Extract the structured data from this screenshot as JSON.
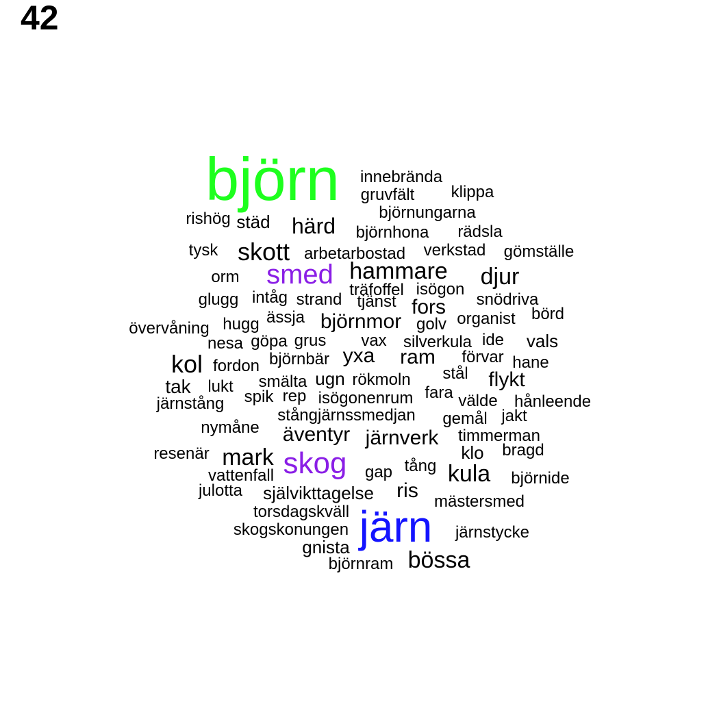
{
  "page_number": "42",
  "colors": {
    "green": "#1eff1e",
    "purple": "#8a1ee6",
    "blue": "#1414ff",
    "black": "#000000"
  },
  "words": [
    {
      "text": "björn",
      "color": "#1eff1e"
    },
    {
      "text": "innebrända",
      "color": "#000000"
    },
    {
      "text": "gruvfält",
      "color": "#000000"
    },
    {
      "text": "klippa",
      "color": "#000000"
    },
    {
      "text": "björnungarna",
      "color": "#000000"
    },
    {
      "text": "rishög",
      "color": "#000000"
    },
    {
      "text": "städ",
      "color": "#000000"
    },
    {
      "text": "härd",
      "color": "#000000"
    },
    {
      "text": "björnhona",
      "color": "#000000"
    },
    {
      "text": "rädsla",
      "color": "#000000"
    },
    {
      "text": "tysk",
      "color": "#000000"
    },
    {
      "text": "skott",
      "color": "#000000"
    },
    {
      "text": "arbetarbostad",
      "color": "#000000"
    },
    {
      "text": "verkstad",
      "color": "#000000"
    },
    {
      "text": "gömställe",
      "color": "#000000"
    },
    {
      "text": "smed",
      "color": "#8a1ee6"
    },
    {
      "text": "hammare",
      "color": "#000000"
    },
    {
      "text": "orm",
      "color": "#000000"
    },
    {
      "text": "djur",
      "color": "#000000"
    },
    {
      "text": "träfoffel",
      "color": "#000000"
    },
    {
      "text": "isögon",
      "color": "#000000"
    },
    {
      "text": "glugg",
      "color": "#000000"
    },
    {
      "text": "intåg",
      "color": "#000000"
    },
    {
      "text": "strand",
      "color": "#000000"
    },
    {
      "text": "tjänst",
      "color": "#000000"
    },
    {
      "text": "fors",
      "color": "#000000"
    },
    {
      "text": "snödriva",
      "color": "#000000"
    },
    {
      "text": "ässja",
      "color": "#000000"
    },
    {
      "text": "björnmor",
      "color": "#000000"
    },
    {
      "text": "golv",
      "color": "#000000"
    },
    {
      "text": "organist",
      "color": "#000000"
    },
    {
      "text": "börd",
      "color": "#000000"
    },
    {
      "text": "övervåning",
      "color": "#000000"
    },
    {
      "text": "hugg",
      "color": "#000000"
    },
    {
      "text": "nesa",
      "color": "#000000"
    },
    {
      "text": "göpa",
      "color": "#000000"
    },
    {
      "text": "grus",
      "color": "#000000"
    },
    {
      "text": "vax",
      "color": "#000000"
    },
    {
      "text": "silverkula",
      "color": "#000000"
    },
    {
      "text": "ide",
      "color": "#000000"
    },
    {
      "text": "vals",
      "color": "#000000"
    },
    {
      "text": "kol",
      "color": "#000000"
    },
    {
      "text": "fordon",
      "color": "#000000"
    },
    {
      "text": "björnbär",
      "color": "#000000"
    },
    {
      "text": "yxa",
      "color": "#000000"
    },
    {
      "text": "ram",
      "color": "#000000"
    },
    {
      "text": "förvar",
      "color": "#000000"
    },
    {
      "text": "hane",
      "color": "#000000"
    },
    {
      "text": "stål",
      "color": "#000000"
    },
    {
      "text": "flykt",
      "color": "#000000"
    },
    {
      "text": "tak",
      "color": "#000000"
    },
    {
      "text": "lukt",
      "color": "#000000"
    },
    {
      "text": "smälta",
      "color": "#000000"
    },
    {
      "text": "ugn",
      "color": "#000000"
    },
    {
      "text": "rökmoln",
      "color": "#000000"
    },
    {
      "text": "spik",
      "color": "#000000"
    },
    {
      "text": "rep",
      "color": "#000000"
    },
    {
      "text": "isögonenrum",
      "color": "#000000"
    },
    {
      "text": "fara",
      "color": "#000000"
    },
    {
      "text": "välde",
      "color": "#000000"
    },
    {
      "text": "hånleende",
      "color": "#000000"
    },
    {
      "text": "järnstång",
      "color": "#000000"
    },
    {
      "text": "stångjärnssmedjan",
      "color": "#000000"
    },
    {
      "text": "gemål",
      "color": "#000000"
    },
    {
      "text": "jakt",
      "color": "#000000"
    },
    {
      "text": "nymåne",
      "color": "#000000"
    },
    {
      "text": "äventyr",
      "color": "#000000"
    },
    {
      "text": "järnverk",
      "color": "#000000"
    },
    {
      "text": "timmerman",
      "color": "#000000"
    },
    {
      "text": "resenär",
      "color": "#000000"
    },
    {
      "text": "mark",
      "color": "#000000"
    },
    {
      "text": "skog",
      "color": "#8a1ee6"
    },
    {
      "text": "klo",
      "color": "#000000"
    },
    {
      "text": "bragd",
      "color": "#000000"
    },
    {
      "text": "tång",
      "color": "#000000"
    },
    {
      "text": "vattenfall",
      "color": "#000000"
    },
    {
      "text": "gap",
      "color": "#000000"
    },
    {
      "text": "kula",
      "color": "#000000"
    },
    {
      "text": "björnide",
      "color": "#000000"
    },
    {
      "text": "julotta",
      "color": "#000000"
    },
    {
      "text": "självikttagelse",
      "color": "#000000"
    },
    {
      "text": "ris",
      "color": "#000000"
    },
    {
      "text": "mästersmed",
      "color": "#000000"
    },
    {
      "text": "torsdagskväll",
      "color": "#000000"
    },
    {
      "text": "järn",
      "color": "#1414ff"
    },
    {
      "text": "skogskonungen",
      "color": "#000000"
    },
    {
      "text": "järnstycke",
      "color": "#000000"
    },
    {
      "text": "gnista",
      "color": "#000000"
    },
    {
      "text": "björnram",
      "color": "#000000"
    },
    {
      "text": "bössa",
      "color": "#000000"
    }
  ]
}
